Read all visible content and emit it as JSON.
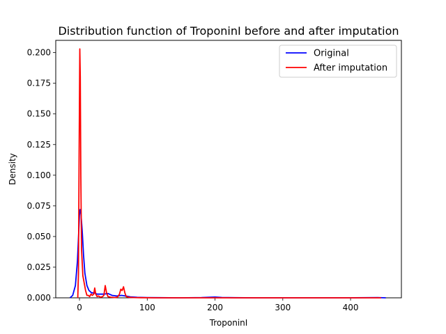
{
  "chart_data": {
    "type": "line",
    "title": "Distribution function of TroponinI before and after imputation",
    "xlabel": "TroponinI",
    "ylabel": "Density",
    "xlim": [
      -35,
      475
    ],
    "ylim": [
      0,
      0.21
    ],
    "xticks": [
      0,
      100,
      200,
      300,
      400
    ],
    "yticks": [
      0.0,
      0.025,
      0.05,
      0.075,
      0.1,
      0.125,
      0.15,
      0.175,
      0.2
    ],
    "ytick_labels": [
      "0.000",
      "0.025",
      "0.050",
      "0.075",
      "0.100",
      "0.125",
      "0.150",
      "0.175",
      "0.200"
    ],
    "grid": false,
    "legend_position": "top-right",
    "series": [
      {
        "name": "Original",
        "color": "#0000ff",
        "points": [
          [
            -14,
            0.0
          ],
          [
            -10,
            0.002
          ],
          [
            -6,
            0.01
          ],
          [
            -3,
            0.03
          ],
          [
            -1,
            0.055
          ],
          [
            0,
            0.068
          ],
          [
            1,
            0.072
          ],
          [
            2,
            0.07
          ],
          [
            4,
            0.055
          ],
          [
            6,
            0.035
          ],
          [
            8,
            0.02
          ],
          [
            11,
            0.01
          ],
          [
            14,
            0.006
          ],
          [
            18,
            0.004
          ],
          [
            22,
            0.004
          ],
          [
            26,
            0.003
          ],
          [
            30,
            0.003
          ],
          [
            36,
            0.003
          ],
          [
            42,
            0.0035
          ],
          [
            48,
            0.002
          ],
          [
            55,
            0.0015
          ],
          [
            62,
            0.002
          ],
          [
            68,
            0.0015
          ],
          [
            75,
            0.0008
          ],
          [
            85,
            0.0004
          ],
          [
            100,
            0.0002
          ],
          [
            120,
            0.0001
          ],
          [
            150,
            0.0
          ],
          [
            180,
            0.0002
          ],
          [
            200,
            0.0006
          ],
          [
            210,
            0.0003
          ],
          [
            230,
            0.0001
          ],
          [
            260,
            0.0
          ],
          [
            300,
            0.0
          ],
          [
            350,
            0.0
          ],
          [
            400,
            0.0
          ],
          [
            440,
            0.0002
          ],
          [
            452,
            0.0
          ]
        ]
      },
      {
        "name": "After imputation",
        "color": "#ff0000",
        "points": [
          [
            -2.5,
            0.0
          ],
          [
            -1.5,
            0.02
          ],
          [
            -0.5,
            0.12
          ],
          [
            0.5,
            0.203
          ],
          [
            1.2,
            0.18
          ],
          [
            2,
            0.1
          ],
          [
            3,
            0.04
          ],
          [
            5,
            0.018
          ],
          [
            7,
            0.012
          ],
          [
            9,
            0.006
          ],
          [
            11,
            0.002
          ],
          [
            13,
            0.002
          ],
          [
            15,
            0.001
          ],
          [
            17,
            0.003
          ],
          [
            19,
            0.002
          ],
          [
            21,
            0.003
          ],
          [
            22.5,
            0.008
          ],
          [
            24,
            0.003
          ],
          [
            26,
            0.001
          ],
          [
            28,
            0.0015
          ],
          [
            31,
            0.0005
          ],
          [
            34,
            0.001
          ],
          [
            36,
            0.002
          ],
          [
            38,
            0.01
          ],
          [
            40,
            0.004
          ],
          [
            42,
            0.001
          ],
          [
            46,
            0.0005
          ],
          [
            52,
            0.0002
          ],
          [
            56,
            0.0005
          ],
          [
            59,
            0.003
          ],
          [
            61,
            0.007
          ],
          [
            63,
            0.006
          ],
          [
            65,
            0.009
          ],
          [
            67,
            0.004
          ],
          [
            69,
            0.001
          ],
          [
            73,
            0.0004
          ],
          [
            80,
            0.0002
          ],
          [
            90,
            0.0001
          ],
          [
            110,
            0.0
          ],
          [
            150,
            0.0
          ],
          [
            200,
            0.0
          ],
          [
            250,
            0.0
          ],
          [
            300,
            0.0
          ],
          [
            350,
            0.0
          ],
          [
            400,
            0.0
          ],
          [
            445,
            0.0
          ]
        ]
      }
    ]
  }
}
